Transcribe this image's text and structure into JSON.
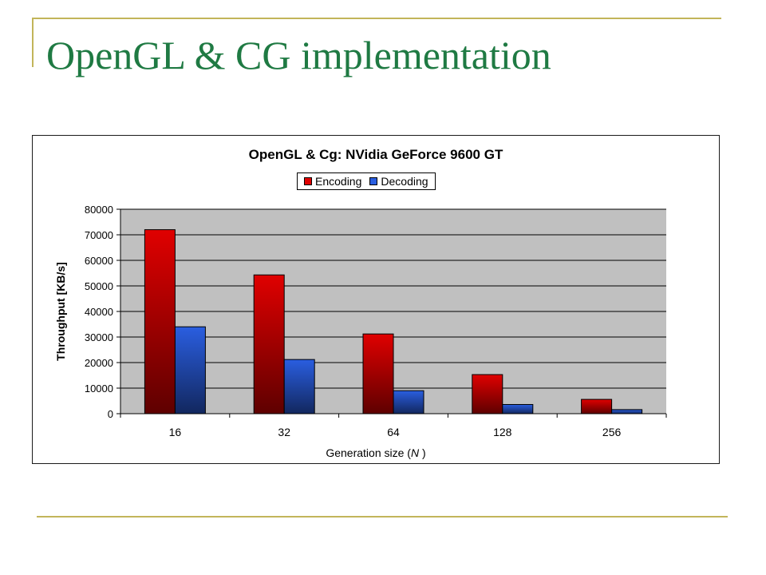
{
  "slide": {
    "title": "OpenGL & CG implementation",
    "title_color": "#1f7a43",
    "accent_color": "#c2b55a"
  },
  "chart_data": {
    "type": "bar",
    "title": "OpenGL & Cg: NVidia GeForce 9600 GT",
    "xlabel": {
      "prefix": "Generation size (",
      "variable": "N",
      "suffix": " )"
    },
    "ylabel": "Throughput [KB/s]",
    "categories": [
      "16",
      "32",
      "64",
      "128",
      "256"
    ],
    "series": [
      {
        "name": "Encoding",
        "values": [
          72000,
          54300,
          31200,
          15300,
          5600
        ],
        "color": "#e00000"
      },
      {
        "name": "Decoding",
        "values": [
          34000,
          21200,
          9000,
          3600,
          1600
        ],
        "color": "#2a5ee0"
      }
    ],
    "ylim": [
      0,
      80000
    ],
    "yticks": [
      0,
      10000,
      20000,
      30000,
      40000,
      50000,
      60000,
      70000,
      80000
    ],
    "grid": true,
    "legend_position": "top-center",
    "plot_background": "#c0c0c0"
  }
}
